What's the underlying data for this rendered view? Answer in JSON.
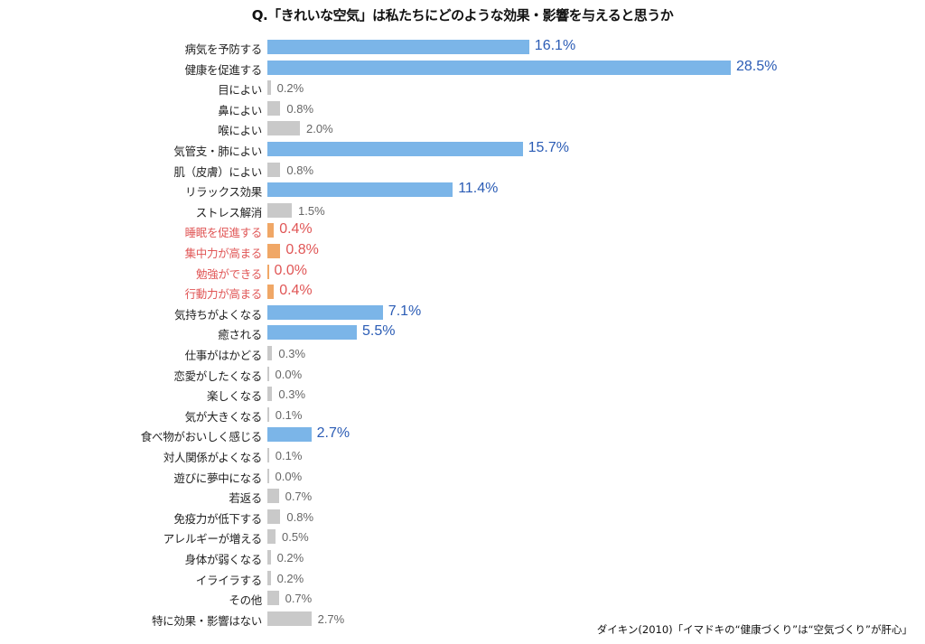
{
  "chart_data": {
    "type": "bar",
    "orientation": "horizontal",
    "title": "Q.「きれいな空気」は私たちにどのような効果・影響を与えると思うか",
    "unit": "%",
    "xlim": [
      0,
      30
    ],
    "grid": false,
    "colors": {
      "highlight_bar": "#7bb5e8",
      "highlight_text": "#2b5cb5",
      "sub_bar": "#f0a766",
      "sub_text": "#e05656",
      "other_bar": "#c9c9c9",
      "other_text": "#666666"
    },
    "categories": [
      "病気を予防する",
      "健康を促進する",
      "目によい",
      "鼻によい",
      "喉によい",
      "気管支・肺によい",
      "肌（皮膚）によい",
      "リラックス効果",
      "ストレス解消",
      "睡眠を促進する",
      "集中力が高まる",
      "勉強ができる",
      "行動力が高まる",
      "気持ちがよくなる",
      "癒される",
      "仕事がはかどる",
      "恋愛がしたくなる",
      "楽しくなる",
      "気が大きくなる",
      "食べ物がおいしく感じる",
      "対人関係がよくなる",
      "遊びに夢中になる",
      "若返る",
      "免疫力が低下する",
      "アレルギーが増える",
      "身体が弱くなる",
      "イライラする",
      "その他",
      "特に効果・影響はない"
    ],
    "values": [
      16.1,
      28.5,
      0.2,
      0.8,
      2.0,
      15.7,
      0.8,
      11.4,
      1.5,
      0.4,
      0.8,
      0.0,
      0.4,
      7.1,
      5.5,
      0.3,
      0.0,
      0.3,
      0.1,
      2.7,
      0.1,
      0.0,
      0.7,
      0.8,
      0.5,
      0.2,
      0.2,
      0.7,
      2.7
    ],
    "value_labels": [
      "16.1%",
      "28.5%",
      "0.2%",
      "0.8%",
      "2.0%",
      "15.7%",
      "0.8%",
      "11.4%",
      "1.5%",
      "0.4%",
      "0.8%",
      "0.0%",
      "0.4%",
      "7.1%",
      "5.5%",
      "0.3%",
      "0.0%",
      "0.3%",
      "0.1%",
      "2.7%",
      "0.1%",
      "0.0%",
      "0.7%",
      "0.8%",
      "0.5%",
      "0.2%",
      "0.2%",
      "0.7%",
      "2.7%"
    ],
    "groups": [
      "highlight",
      "highlight",
      "other",
      "other",
      "other",
      "highlight",
      "other",
      "highlight",
      "other",
      "sub",
      "sub",
      "sub",
      "sub",
      "highlight",
      "highlight",
      "other",
      "other",
      "other",
      "other",
      "highlight",
      "other",
      "other",
      "other",
      "other",
      "other",
      "other",
      "other",
      "other",
      "other"
    ]
  },
  "source": "ダイキン(2010)「イマドキの“健康づくり”は“空気づくり”が肝心」"
}
